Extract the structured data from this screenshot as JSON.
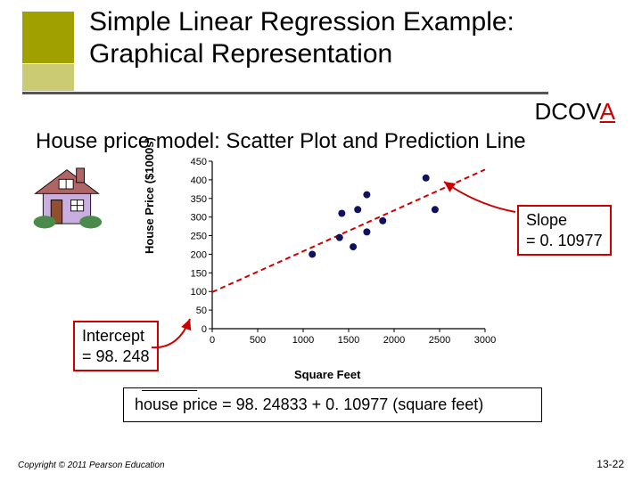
{
  "title": {
    "line1": "Simple Linear Regression Example:",
    "line2": "Graphical Representation"
  },
  "dcova": {
    "prefix": "DCOV",
    "highlight": "A"
  },
  "subtitle": "House price model:  Scatter Plot and Prediction Line",
  "chart": {
    "type": "scatter-with-line",
    "xlabel": "Square Feet",
    "ylabel": "House Price ($1000s)",
    "xlim": [
      0,
      3000
    ],
    "ylim": [
      0,
      450
    ],
    "xticks": [
      0,
      500,
      1000,
      1500,
      2000,
      2500,
      3000
    ],
    "yticks": [
      0,
      50,
      100,
      150,
      200,
      250,
      300,
      350,
      400,
      450
    ],
    "background_color": "#ffffff",
    "axis_color": "#000000",
    "points": [
      {
        "x": 1100,
        "y": 200
      },
      {
        "x": 1400,
        "y": 245
      },
      {
        "x": 1425,
        "y": 310
      },
      {
        "x": 1550,
        "y": 220
      },
      {
        "x": 1600,
        "y": 320
      },
      {
        "x": 1700,
        "y": 260
      },
      {
        "x": 1700,
        "y": 360
      },
      {
        "x": 1875,
        "y": 290
      },
      {
        "x": 2350,
        "y": 405
      },
      {
        "x": 2450,
        "y": 320
      }
    ],
    "point_color": "#101060",
    "point_radius": 4,
    "line": {
      "intercept": 98.248,
      "slope": 0.10977,
      "color": "#cc0000",
      "dash": "6,4",
      "width": 2
    }
  },
  "annotations": {
    "intercept": {
      "l1": "Intercept",
      "l2": "= 98. 248"
    },
    "slope": {
      "l1": "Slope",
      "l2": "= 0. 10977"
    }
  },
  "callout_color": "#cc0000",
  "equation": {
    "lhs": "house price",
    "rhs": "= 98. 24833 + 0. 10977 (square feet)"
  },
  "copyright": "Copyright © 2011 Pearson Education",
  "pagenum": "13-22",
  "colors": {
    "accent": "#a0a000",
    "highlight": "#cc0000",
    "text": "#000000"
  }
}
